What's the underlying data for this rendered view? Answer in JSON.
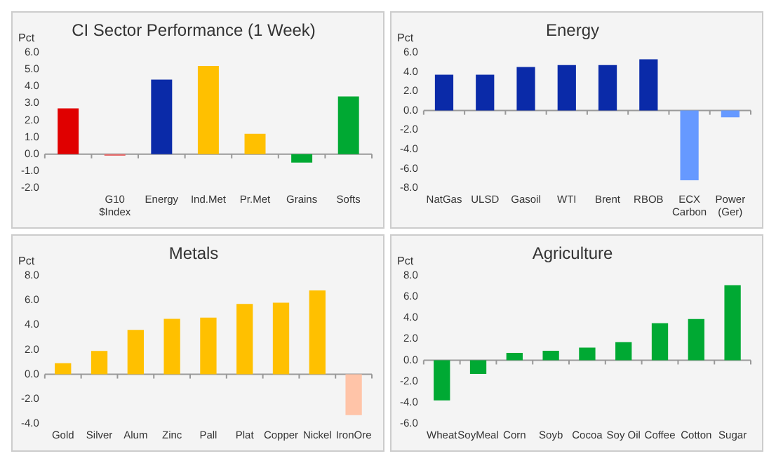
{
  "chart_data": [
    {
      "type": "bar",
      "title": "CI Sector Performance (1 Week)",
      "ylabel": "Pct",
      "categories": [
        null,
        "G10 $Index",
        "Energy",
        "Ind.Met",
        "Pr.Met",
        "Grains",
        "Softs"
      ],
      "values": [
        2.7,
        -0.1,
        4.4,
        5.2,
        1.2,
        -0.5,
        3.4
      ],
      "colors": [
        "#e00000",
        "#e87070",
        "#0a2aa8",
        "#ffc000",
        "#ffc000",
        "#00a933",
        "#00a933"
      ],
      "ylim": [
        -2,
        6
      ],
      "yticks": [
        {
          "value": -2,
          "label": "-2.0"
        },
        {
          "value": -1,
          "label": "-1.0"
        },
        {
          "value": 0,
          "label": "0.0"
        },
        {
          "value": 1,
          "label": "1.0"
        },
        {
          "value": 2,
          "label": "2.0"
        },
        {
          "value": 3,
          "label": "3.0"
        },
        {
          "value": 4,
          "label": "4.0"
        },
        {
          "value": 5,
          "label": "5.0"
        },
        {
          "value": 6,
          "label": "6.0"
        }
      ],
      "legend": false
    },
    {
      "type": "bar",
      "title": "Energy",
      "ylabel": "Pct",
      "categories": [
        "NatGas",
        "ULSD",
        "Gasoil",
        "WTI",
        "Brent",
        "RBOB",
        "ECX Carbon",
        "Power (Ger)"
      ],
      "values": [
        3.7,
        3.7,
        4.5,
        4.7,
        4.7,
        5.3,
        -7.2,
        -0.7
      ],
      "colors": [
        "#0a2aa8",
        "#0a2aa8",
        "#0a2aa8",
        "#0a2aa8",
        "#0a2aa8",
        "#0a2aa8",
        "#6699ff",
        "#6699ff"
      ],
      "ylim": [
        -8,
        6
      ],
      "yticks": [
        {
          "value": -8,
          "label": "-8.0"
        },
        {
          "value": -6,
          "label": "-6.0"
        },
        {
          "value": -4,
          "label": "-4.0"
        },
        {
          "value": -2,
          "label": "-2.0"
        },
        {
          "value": 0,
          "label": "0.0"
        },
        {
          "value": 2,
          "label": "2.0"
        },
        {
          "value": 4,
          "label": "4.0"
        },
        {
          "value": 6,
          "label": "6.0"
        }
      ],
      "legend": false
    },
    {
      "type": "bar",
      "title": "Metals",
      "ylabel": "Pct",
      "categories": [
        "Gold",
        "Silver",
        "Alum",
        "Zinc",
        "Pall",
        "Plat",
        "Copper",
        "Nickel",
        "IronOre"
      ],
      "values": [
        0.9,
        1.9,
        3.6,
        4.5,
        4.6,
        5.7,
        5.8,
        6.8,
        -3.3
      ],
      "colors": [
        "#ffc000",
        "#ffc000",
        "#ffc000",
        "#ffc000",
        "#ffc000",
        "#ffc000",
        "#ffc000",
        "#ffc000",
        "#ffc4a8"
      ],
      "ylim": [
        -4,
        8
      ],
      "yticks": [
        {
          "value": -4,
          "label": "-4.0"
        },
        {
          "value": -2,
          "label": "-2.0"
        },
        {
          "value": 0,
          "label": "0.0"
        },
        {
          "value": 2,
          "label": "2.0"
        },
        {
          "value": 4,
          "label": "4.0"
        },
        {
          "value": 6,
          "label": "6.0"
        },
        {
          "value": 8,
          "label": "8.0"
        }
      ],
      "legend": false
    },
    {
      "type": "bar",
      "title": "Agriculture",
      "ylabel": "Pct",
      "categories": [
        "Wheat",
        "SoyMeal",
        "Corn",
        "Soyb",
        "Cocoa",
        "Soy Oil",
        "Coffee",
        "Cotton",
        "Sugar"
      ],
      "values": [
        -3.8,
        -1.3,
        0.7,
        0.9,
        1.2,
        1.7,
        3.5,
        3.9,
        7.1
      ],
      "colors": [
        "#00a933",
        "#00a933",
        "#00a933",
        "#00a933",
        "#00a933",
        "#00a933",
        "#00a933",
        "#00a933",
        "#00a933"
      ],
      "ylim": [
        -6,
        8
      ],
      "yticks": [
        {
          "value": -6,
          "label": "-6.0"
        },
        {
          "value": -4,
          "label": "-4.0"
        },
        {
          "value": -2,
          "label": "-2.0"
        },
        {
          "value": 0,
          "label": "0.0"
        },
        {
          "value": 2,
          "label": "2.0"
        },
        {
          "value": 4,
          "label": "4.0"
        },
        {
          "value": 6,
          "label": "6.0"
        },
        {
          "value": 8,
          "label": "8.0"
        }
      ],
      "legend": false
    }
  ]
}
